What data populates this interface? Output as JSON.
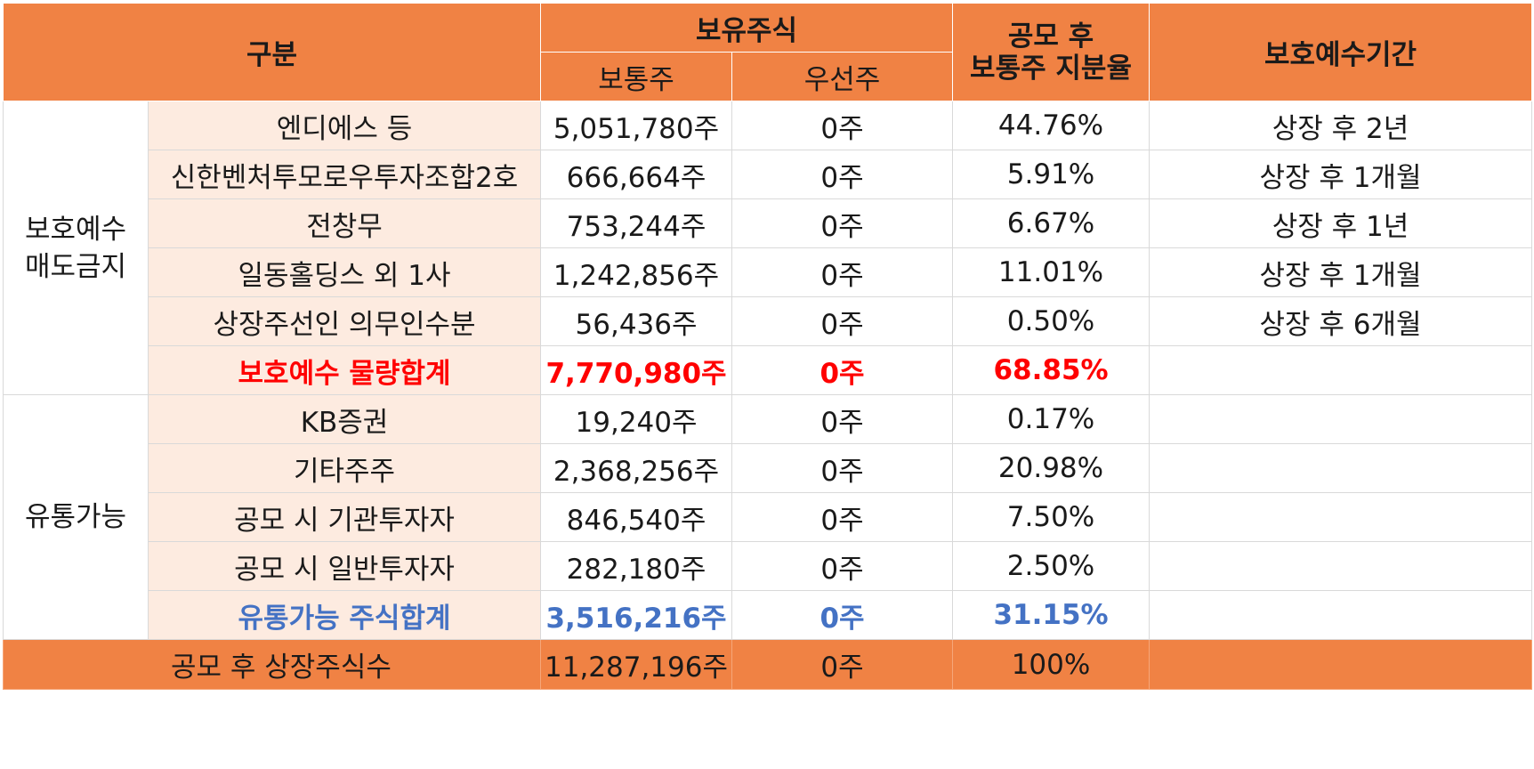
{
  "header": {
    "category": "구분",
    "holdings": "보유주식",
    "common": "보통주",
    "preferred": "우선주",
    "ratio_line1": "공모 후",
    "ratio_line2": "보통주 지분율",
    "lockup_period": "보호예수기간"
  },
  "groups": {
    "lockup_line1": "보호예수",
    "lockup_line2": "매도금지",
    "tradable": "유통가능"
  },
  "lockup_rows": [
    {
      "name": "엔디에스 등",
      "common": "5,051,780주",
      "preferred": "0주",
      "ratio": "44.76%",
      "period": "상장 후 2년"
    },
    {
      "name": "신한벤처투모로우투자조합2호",
      "common": "666,664주",
      "preferred": "0주",
      "ratio": "5.91%",
      "period": "상장 후 1개월"
    },
    {
      "name": "전창무",
      "common": "753,244주",
      "preferred": "0주",
      "ratio": "6.67%",
      "period": "상장 후 1년"
    },
    {
      "name": "일동홀딩스 외 1사",
      "common": "1,242,856주",
      "preferred": "0주",
      "ratio": "11.01%",
      "period": "상장 후 1개월"
    },
    {
      "name": "상장주선인 의무인수분",
      "common": "56,436주",
      "preferred": "0주",
      "ratio": "0.50%",
      "period": "상장 후 6개월"
    }
  ],
  "lockup_total": {
    "name": "보호예수 물량합계",
    "common": "7,770,980주",
    "preferred": "0주",
    "ratio": "68.85%",
    "period": ""
  },
  "tradable_rows": [
    {
      "name": "KB증권",
      "common": "19,240주",
      "preferred": "0주",
      "ratio": "0.17%",
      "period": ""
    },
    {
      "name": "기타주주",
      "common": "2,368,256주",
      "preferred": "0주",
      "ratio": "20.98%",
      "period": ""
    },
    {
      "name": "공모 시 기관투자자",
      "common": "846,540주",
      "preferred": "0주",
      "ratio": "7.50%",
      "period": ""
    },
    {
      "name": "공모 시 일반투자자",
      "common": "282,180주",
      "preferred": "0주",
      "ratio": "2.50%",
      "period": ""
    }
  ],
  "tradable_total": {
    "name": "유통가능 주식합계",
    "common": "3,516,216주",
    "preferred": "0주",
    "ratio": "31.15%",
    "period": ""
  },
  "footer": {
    "name": "공모 후 상장주식수",
    "common": "11,287,196주",
    "preferred": "0주",
    "ratio": "100%",
    "period": ""
  },
  "colors": {
    "header_bg": "#f08244",
    "row_bg": "#fdebe0",
    "red_total": "#ff0000",
    "blue_total": "#4472c4"
  }
}
